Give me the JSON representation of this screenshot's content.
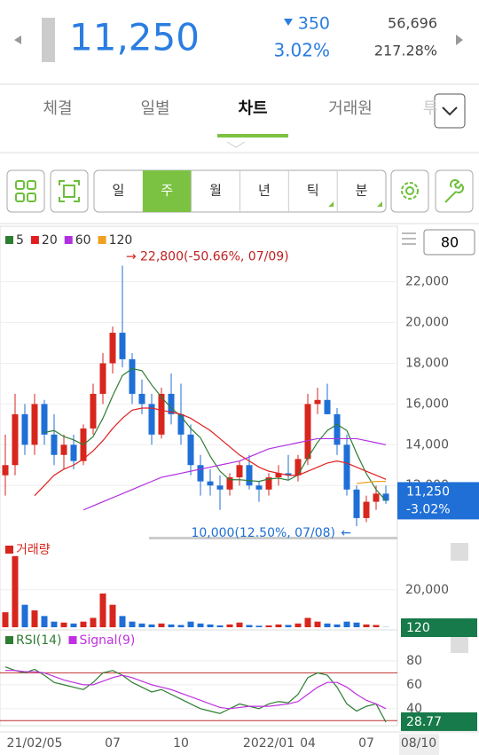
{
  "header": {
    "price": "11,250",
    "change": "350",
    "change_pct": "3.02%",
    "volume": "56,696",
    "turnover": "217.28%"
  },
  "tabs": [
    "체결",
    "일별",
    "차트",
    "거래원",
    "투"
  ],
  "active_tab": 2,
  "periods": [
    "일",
    "주",
    "월",
    "년",
    "틱",
    "분"
  ],
  "active_period": 1,
  "zoom": "80",
  "chart_data": [
    {
      "type": "candlestick",
      "categories": [
        null,
        null,
        null,
        "21/02/05",
        null,
        null,
        null,
        null,
        null,
        null,
        null,
        "07",
        null,
        null,
        null,
        null,
        null,
        null,
        "10",
        null,
        null,
        null,
        null,
        null,
        null,
        null,
        null,
        "2022/01",
        null,
        null,
        null,
        "04",
        null,
        null,
        null,
        null,
        null,
        "07",
        null,
        null
      ],
      "last_date": "08/10",
      "open": [
        12500,
        13000,
        15500,
        14000,
        16000,
        14500,
        13500,
        14000,
        13200,
        14800,
        16500,
        18000,
        19500,
        18200,
        16500,
        16000,
        14500,
        16500,
        15500,
        14500,
        13000,
        12200,
        12000,
        11800,
        12400,
        13000,
        12000,
        11800,
        12400,
        12600,
        12500,
        13300,
        16000,
        16200,
        15500,
        14000,
        11800,
        10400,
        11200,
        11600
      ],
      "high": [
        14500,
        16500,
        16000,
        16500,
        16200,
        15500,
        14500,
        14500,
        15000,
        17000,
        18500,
        19800,
        22800,
        18500,
        17200,
        16500,
        16800,
        17500,
        17000,
        15000,
        13500,
        12800,
        12500,
        12600,
        13200,
        13500,
        12200,
        12600,
        13000,
        13500,
        13500,
        16500,
        16800,
        17000,
        15800,
        14500,
        12000,
        11500,
        12000,
        12000
      ],
      "low": [
        11500,
        12500,
        13500,
        13500,
        14000,
        13000,
        12800,
        12800,
        13000,
        14500,
        16000,
        17500,
        17800,
        16000,
        15500,
        14000,
        14300,
        15000,
        14000,
        12500,
        11500,
        11500,
        10800,
        11500,
        12000,
        11800,
        11200,
        11500,
        12000,
        12300,
        12200,
        13000,
        15500,
        15500,
        13500,
        11500,
        10000,
        10200,
        10800,
        11100
      ],
      "close": [
        13000,
        15500,
        14000,
        16000,
        14500,
        13500,
        14000,
        13200,
        14800,
        16500,
        18000,
        19500,
        18200,
        16500,
        16000,
        14500,
        16500,
        15500,
        14500,
        13000,
        12200,
        12000,
        11800,
        12400,
        13000,
        12000,
        11800,
        12400,
        12600,
        12500,
        13300,
        16000,
        16200,
        15500,
        14000,
        11800,
        10400,
        11200,
        11600,
        11250
      ],
      "up_color": "#d7261e",
      "down_color": "#1f6fd6",
      "series": [
        {
          "name": "5",
          "color": "#2e7d32",
          "values": [
            null,
            null,
            null,
            null,
            14600,
            14700,
            14400,
            14240,
            14000,
            14400,
            15300,
            16400,
            17400,
            17740,
            17640,
            16940,
            16340,
            15800,
            15400,
            14800,
            14340,
            13440,
            12700,
            12280,
            12280,
            12240,
            12200,
            12320,
            12360,
            12260,
            12520,
            13360,
            14120,
            14700,
            15000,
            14700,
            13580,
            12580,
            11800,
            11250
          ]
        },
        {
          "name": "20",
          "color": "#e02020",
          "values": [
            null,
            null,
            null,
            11500,
            12000,
            12500,
            12800,
            13000,
            13300,
            13700,
            14200,
            14800,
            15300,
            15700,
            15800,
            15800,
            15700,
            15600,
            15500,
            15300,
            15000,
            14700,
            14300,
            13900,
            13500,
            13200,
            12900,
            12700,
            12600,
            12500,
            12500,
            12700,
            12900,
            13100,
            13200,
            13100,
            12900,
            12700,
            12500,
            12300
          ]
        },
        {
          "name": "60",
          "color": "#b030e0",
          "values": [
            null,
            null,
            null,
            null,
            null,
            null,
            null,
            null,
            10800,
            11000,
            11200,
            11400,
            11600,
            11800,
            12000,
            12200,
            12400,
            12500,
            12600,
            12700,
            12800,
            12900,
            13000,
            13100,
            13200,
            13400,
            13600,
            13800,
            13900,
            14000,
            14100,
            14200,
            14300,
            14300,
            14300,
            14300,
            14300,
            14200,
            14100,
            14000
          ]
        },
        {
          "name": "120",
          "color": "#f0a020",
          "values": [
            null,
            null,
            null,
            null,
            null,
            null,
            null,
            null,
            null,
            null,
            null,
            null,
            null,
            null,
            null,
            null,
            null,
            null,
            null,
            null,
            null,
            null,
            null,
            null,
            null,
            null,
            null,
            null,
            null,
            null,
            null,
            null,
            null,
            null,
            null,
            null,
            12100,
            12150,
            12200,
            12200
          ]
        }
      ],
      "ylim": [
        9700,
        24600
      ],
      "yticks": [
        {
          "value": 12000,
          "label": "12,000"
        },
        {
          "value": 14000,
          "label": "14,000"
        },
        {
          "value": 16000,
          "label": "16,000"
        },
        {
          "value": 18000,
          "label": "18,000"
        },
        {
          "value": 20000,
          "label": "20,000"
        },
        {
          "value": 22000,
          "label": "22,000"
        }
      ],
      "high_label": "22,800(-50.66%, 07/09)",
      "low_label": "10,000(12.50%, 07/08)",
      "last_price": "11,250",
      "last_change": "-3.02%"
    },
    {
      "type": "bar",
      "name": "거래량",
      "color": "#d7261e",
      "values": [
        8000,
        38000,
        12000,
        9000,
        6000,
        3000,
        2500,
        2000,
        3000,
        5000,
        18000,
        12000,
        6000,
        3000,
        2000,
        1500,
        2000,
        1500,
        1200,
        3000,
        2000,
        1500,
        1000,
        1500,
        2500,
        1200,
        800,
        1000,
        1500,
        1200,
        2000,
        5000,
        3000,
        2000,
        1500,
        3000,
        2500,
        1500,
        1200,
        120
      ],
      "ylim": [
        0,
        45000
      ],
      "yticks": [
        {
          "value": 20000,
          "label": "20,000"
        }
      ],
      "current_label": "120"
    },
    {
      "type": "line",
      "series": [
        {
          "name": "RSI(14)",
          "color": "#2e7d32",
          "values": [
            75,
            72,
            70,
            73,
            68,
            62,
            60,
            58,
            56,
            62,
            70,
            72,
            68,
            62,
            58,
            54,
            56,
            52,
            48,
            44,
            40,
            38,
            36,
            40,
            44,
            42,
            40,
            44,
            46,
            45,
            52,
            66,
            70,
            68,
            58,
            44,
            38,
            42,
            44,
            28.77
          ]
        },
        {
          "name": "Signal(9)",
          "color": "#c030e0",
          "values": [
            72,
            72,
            71,
            71,
            70,
            67,
            64,
            62,
            60,
            60,
            63,
            66,
            68,
            66,
            63,
            60,
            58,
            56,
            53,
            50,
            47,
            44,
            41,
            40,
            41,
            42,
            42,
            42,
            43,
            44,
            46,
            52,
            58,
            62,
            62,
            58,
            52,
            47,
            44,
            40
          ]
        }
      ],
      "levels": [
        70,
        30
      ],
      "level_color": "#c03030",
      "ylim": [
        25,
        100
      ],
      "yticks": [
        40,
        60,
        80
      ],
      "current_label": "28.77"
    }
  ]
}
